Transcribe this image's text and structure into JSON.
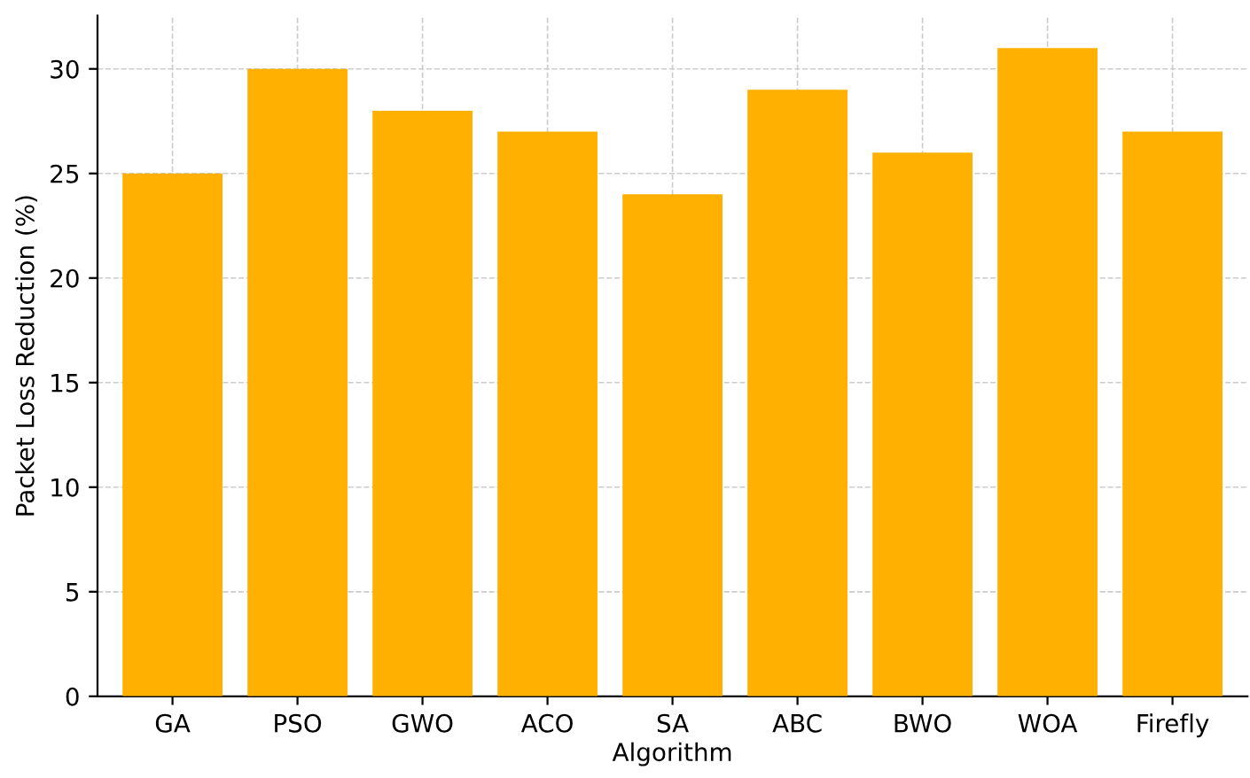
{
  "chart_data": {
    "type": "bar",
    "categories": [
      "GA",
      "PSO",
      "GWO",
      "ACO",
      "SA",
      "ABC",
      "BWO",
      "WOA",
      "Firefly"
    ],
    "values": [
      25,
      30,
      28,
      27,
      24,
      29,
      26,
      31,
      27
    ],
    "color": "#ffb000",
    "xlabel": "Algorithm",
    "ylabel": "Packet Loss Reduction (%)",
    "ylim": [
      0,
      32.55
    ],
    "yticks": [
      0,
      5,
      10,
      15,
      20,
      25,
      30
    ],
    "grid": true,
    "line_style": "dashed"
  }
}
